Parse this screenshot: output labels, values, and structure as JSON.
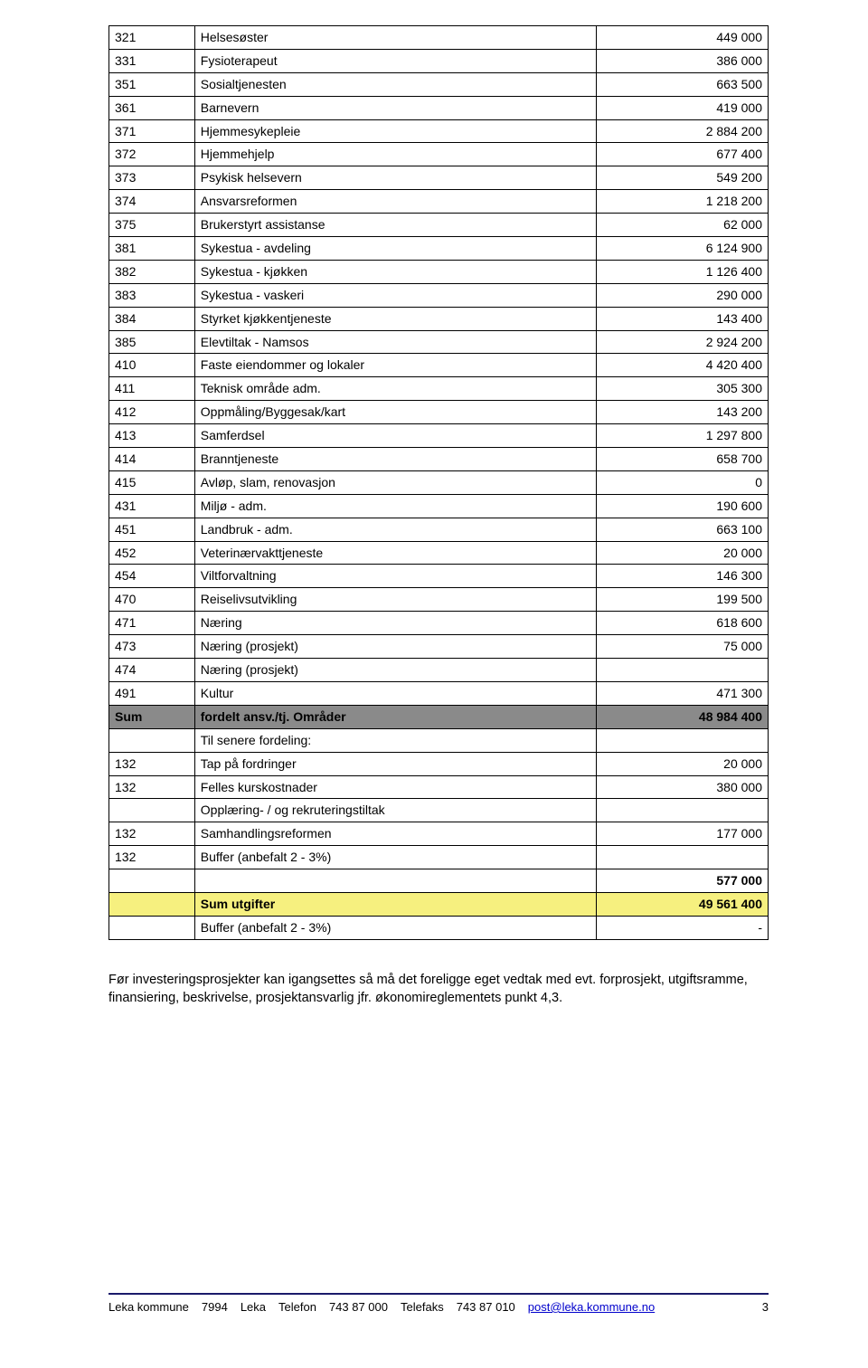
{
  "colors": {
    "sum_bg": "#8a8a8a",
    "highlight_bg": "#f6f07f",
    "footer_line": "#1a1a6a",
    "link": "#0000cc",
    "page_bg": "#ffffff",
    "text": "#000000",
    "border": "#000000"
  },
  "typography": {
    "table_fontsize_pt": 10.5,
    "body_fontsize_pt": 11,
    "footer_fontsize_pt": 10,
    "font_family": "Verdana"
  },
  "table": {
    "column_widths_pct": [
      13,
      61,
      26
    ],
    "rows": [
      {
        "code": "321",
        "label": "Helsesøster",
        "value": "449 000"
      },
      {
        "code": "331",
        "label": "Fysioterapeut",
        "value": "386 000"
      },
      {
        "code": "351",
        "label": "Sosialtjenesten",
        "value": "663 500"
      },
      {
        "code": "361",
        "label": "Barnevern",
        "value": "419 000"
      },
      {
        "code": "371",
        "label": "Hjemmesykepleie",
        "value": "2 884 200"
      },
      {
        "code": "372",
        "label": "Hjemmehjelp",
        "value": "677 400"
      },
      {
        "code": "373",
        "label": "Psykisk helsevern",
        "value": "549 200"
      },
      {
        "code": "374",
        "label": "Ansvarsreformen",
        "value": "1 218 200"
      },
      {
        "code": "375",
        "label": "Brukerstyrt assistanse",
        "value": "62 000"
      },
      {
        "code": "381",
        "label": "Sykestua - avdeling",
        "value": "6 124 900"
      },
      {
        "code": "382",
        "label": "Sykestua - kjøkken",
        "value": "1 126 400"
      },
      {
        "code": "383",
        "label": "Sykestua - vaskeri",
        "value": "290 000"
      },
      {
        "code": "384",
        "label": "Styrket kjøkkentjeneste",
        "value": "143 400"
      },
      {
        "code": "385",
        "label": "Elevtiltak - Namsos",
        "value": "2 924 200"
      },
      {
        "code": "410",
        "label": "Faste eiendommer og lokaler",
        "value": "4 420 400"
      },
      {
        "code": "411",
        "label": "Teknisk område adm.",
        "value": "305 300"
      },
      {
        "code": "412",
        "label": "Oppmåling/Byggesak/kart",
        "value": "143 200"
      },
      {
        "code": "413",
        "label": "Samferdsel",
        "value": "1 297 800"
      },
      {
        "code": "414",
        "label": "Branntjeneste",
        "value": "658 700"
      },
      {
        "code": "415",
        "label": "Avløp, slam, renovasjon",
        "value": "0"
      },
      {
        "code": "431",
        "label": "Miljø - adm.",
        "value": "190 600"
      },
      {
        "code": "451",
        "label": "Landbruk - adm.",
        "value": "663 100"
      },
      {
        "code": "452",
        "label": "Veterinærvakttjeneste",
        "value": "20 000"
      },
      {
        "code": "454",
        "label": "Viltforvaltning",
        "value": "146 300"
      },
      {
        "code": "470",
        "label": "Reiselivsutvikling",
        "value": "199 500"
      },
      {
        "code": "471",
        "label": "Næring",
        "value": "618 600"
      },
      {
        "code": "473",
        "label": "Næring  (prosjekt)",
        "value": "75 000"
      },
      {
        "code": "474",
        "label": "Næring (prosjekt)",
        "value": ""
      },
      {
        "code": "491",
        "label": "Kultur",
        "value": "471 300"
      },
      {
        "code": "Sum",
        "label": "fordelt ansv./tj. Områder",
        "value": "48 984 400",
        "style": "sum1"
      },
      {
        "code": "",
        "label": "Til senere fordeling:",
        "value": ""
      },
      {
        "code": "132",
        "label": "Tap på fordringer",
        "value": "20 000"
      },
      {
        "code": "132",
        "label": "Felles kurskostnader",
        "value": "380 000"
      },
      {
        "code": "",
        "label": "Opplæring- / og rekruteringstiltak",
        "value": ""
      },
      {
        "code": "132",
        "label": "Samhandlingsreformen",
        "value": "177 000"
      },
      {
        "code": "132",
        "label": "Buffer (anbefalt 2 - 3%)",
        "value": ""
      },
      {
        "code": "",
        "label": "",
        "value": "577 000",
        "style": "subtotal"
      },
      {
        "code": "",
        "label": "Sum utgifter",
        "value": "49 561 400",
        "style": "highlight"
      },
      {
        "code": "",
        "label": "Buffer (anbefalt 2 - 3%)",
        "value": "-"
      }
    ]
  },
  "body_text": "Før investeringsprosjekter kan igangsettes så må det foreligge eget vedtak med evt. forprosjekt, utgiftsramme, finansiering, beskrivelse, prosjektansvarlig jfr. økonomireglementets punkt 4,3.",
  "footer": {
    "org": "Leka kommune",
    "postcode": "7994",
    "place": "Leka",
    "phone_label": "Telefon",
    "phone": "743 87 000",
    "fax_label": "Telefaks",
    "fax": "743 87 010",
    "email": "post@leka.kommune.no",
    "page": "3"
  }
}
